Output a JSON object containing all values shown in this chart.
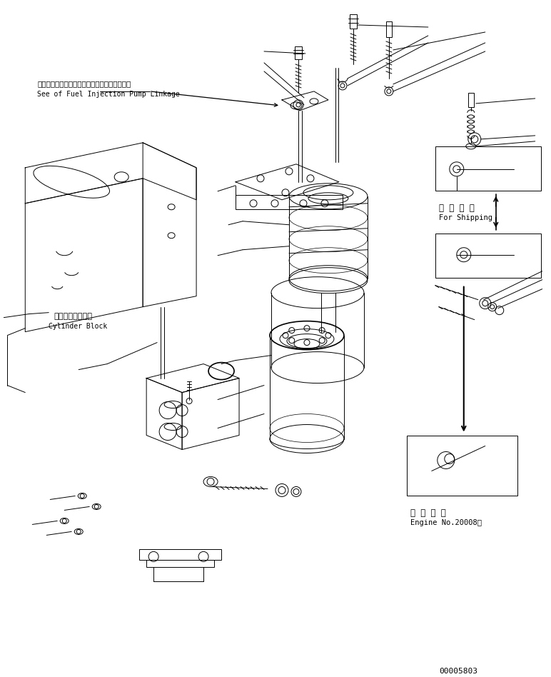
{
  "bg_color": "#ffffff",
  "line_color": "#000000",
  "fig_width": 7.72,
  "fig_height": 9.48,
  "dpi": 100,
  "part_id": "00005803",
  "label_top_jp": "フェルインジェクションボンプリンケージ参照",
  "label_top_en": "See of Fuel Injection Pump Linkage",
  "label_cylinder_jp": "シリンダブロック",
  "label_cylinder_en": "Cylinder Block",
  "label_shipping_jp": "運 携 部 品",
  "label_shipping_en": "For Shipping",
  "label_engine_jp": "適 用 号 機",
  "label_engine_en": "Engine No.20008～"
}
